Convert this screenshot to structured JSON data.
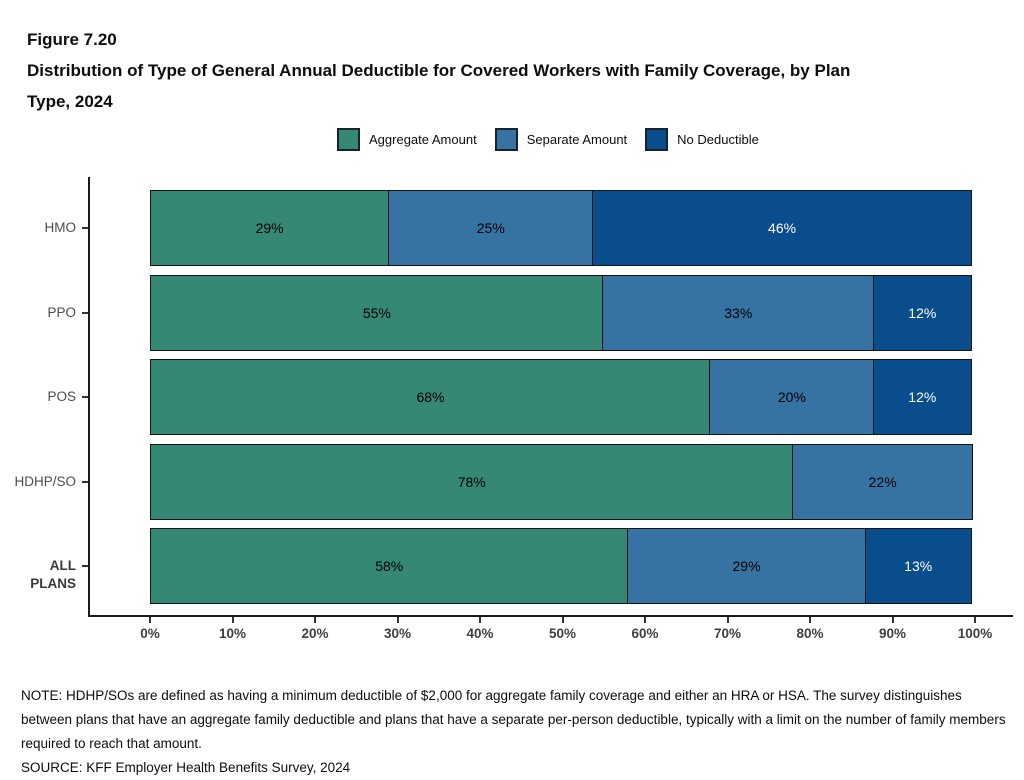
{
  "header": {
    "figure_label": "Figure 7.20",
    "title": "Distribution of Type of General Annual Deductible for Covered Workers with Family Coverage, by Plan Type, 2024"
  },
  "chart_data": {
    "type": "bar",
    "orientation": "horizontal",
    "stacked": true,
    "categories": [
      "HMO",
      "PPO",
      "POS",
      "HDHP/SO",
      "ALL PLANS"
    ],
    "bold_categories": [
      "ALL PLANS"
    ],
    "series": [
      {
        "name": "Aggregate Amount",
        "color": "#348874",
        "label_color": "#000000",
        "values": [
          29,
          55,
          68,
          78,
          58
        ]
      },
      {
        "name": "Separate Amount",
        "color": "#3673A2",
        "label_color": "#000000",
        "values": [
          25,
          33,
          20,
          22,
          29
        ]
      },
      {
        "name": "No Deductible",
        "color": "#0A4D8C",
        "label_color": "#ffffff",
        "values": [
          46,
          12,
          12,
          0,
          13
        ]
      }
    ],
    "x_ticks": [
      "0%",
      "10%",
      "20%",
      "30%",
      "40%",
      "50%",
      "60%",
      "70%",
      "80%",
      "90%",
      "100%"
    ],
    "xlim": [
      0,
      100
    ],
    "value_suffix": "%",
    "legend_position": "top",
    "grid": false
  },
  "notes": {
    "note": "NOTE: HDHP/SOs are defined as having a minimum deductible of $2,000 for aggregate family coverage and either an HRA or HSA. The survey distinguishes between plans that have an aggregate family deductible and plans that have a separate per-person deductible, typically with a limit on the number of family members required to reach that amount.",
    "source": "SOURCE: KFF Employer Health Benefits Survey, 2024"
  }
}
